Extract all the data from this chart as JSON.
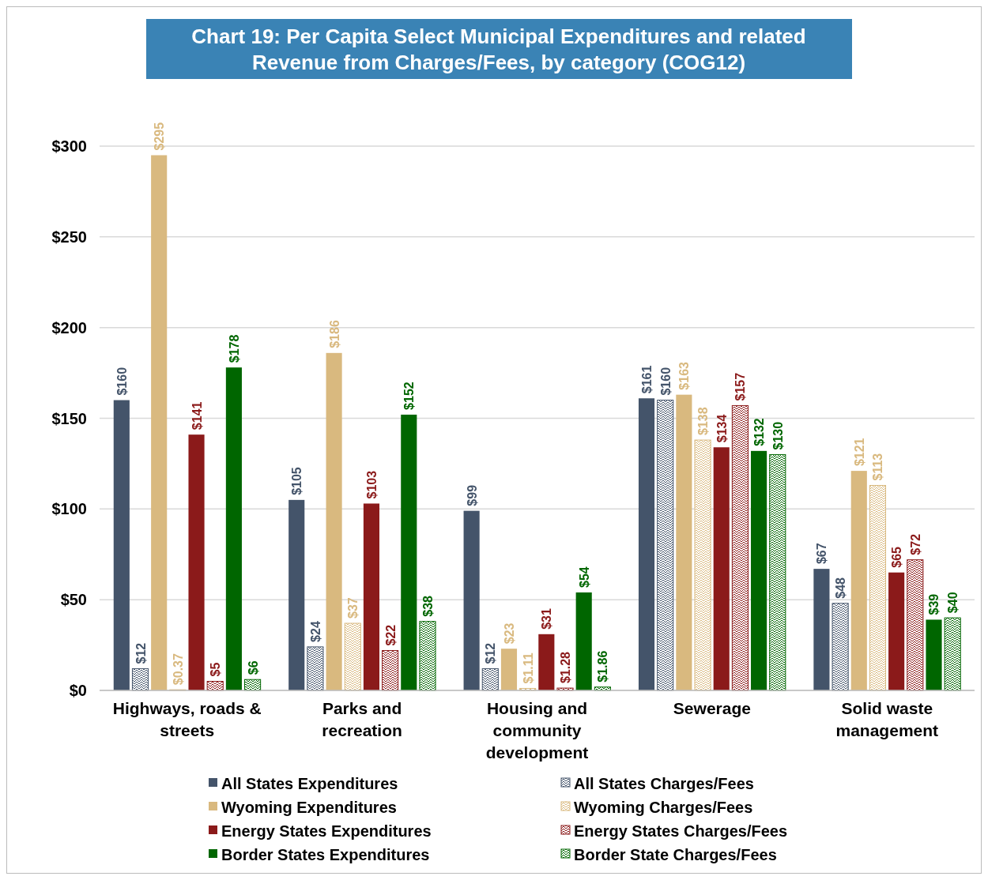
{
  "chart_data": {
    "type": "bar",
    "title": "Chart 19: Per Capita Select Municipal Expenditures and related Revenue from Charges/Fees, by category (COG12)",
    "categories": [
      "Highways, roads & streets",
      "Parks and recreation",
      "Housing and community development",
      "Sewerage",
      "Solid waste management"
    ],
    "series": [
      {
        "name": "All States Expenditures",
        "color": "#44546a",
        "values": [
          160,
          105,
          99,
          161,
          67
        ],
        "value_labels": [
          "$160",
          "$105",
          "$99",
          "$161",
          "$67"
        ]
      },
      {
        "name": "All States Charges/Fees",
        "color": "#44546a",
        "values": [
          12,
          24,
          12,
          160,
          48
        ],
        "value_labels": [
          "$12",
          "$24",
          "$12",
          "$160",
          "$48"
        ]
      },
      {
        "name": "Wyoming Expenditures",
        "color": "#d9b97f",
        "values": [
          295,
          186,
          23,
          163,
          121
        ],
        "value_labels": [
          "$295",
          "$186",
          "$23",
          "$163",
          "$121"
        ]
      },
      {
        "name": "Wyoming Charges/Fees",
        "color": "#d9b97f",
        "values": [
          0.37,
          37,
          1.11,
          138,
          113
        ],
        "value_labels": [
          "$0.37",
          "$37",
          "$1.11",
          "$138",
          "$113"
        ]
      },
      {
        "name": "Energy States Expenditures",
        "color": "#8b1a1a",
        "values": [
          141,
          103,
          31,
          134,
          65
        ],
        "value_labels": [
          "$141",
          "$103",
          "$31",
          "$134",
          "$65"
        ]
      },
      {
        "name": "Energy States Charges/Fees",
        "color": "#8b1a1a",
        "values": [
          5,
          22,
          1.28,
          157,
          72
        ],
        "value_labels": [
          "$5",
          "$22",
          "$1.28",
          "$157",
          "$72"
        ]
      },
      {
        "name": "Border States Expenditures",
        "color": "#006600",
        "values": [
          178,
          152,
          54,
          132,
          39
        ],
        "value_labels": [
          "$178",
          "$152",
          "$54",
          "$132",
          "$39"
        ]
      },
      {
        "name": "Border State Charges/Fees",
        "color": "#006600",
        "values": [
          6,
          38,
          1.86,
          130,
          40
        ],
        "value_labels": [
          "$6",
          "$38",
          "$1.86",
          "$130",
          "$40"
        ]
      }
    ],
    "ylim": [
      0,
      300
    ],
    "yticks": [
      {
        "value": 0,
        "label": "$0"
      },
      {
        "value": 50,
        "label": "$50"
      },
      {
        "value": 100,
        "label": "$100"
      },
      {
        "value": 150,
        "label": "$150"
      },
      {
        "value": 200,
        "label": "$200"
      },
      {
        "value": 250,
        "label": "$250"
      },
      {
        "value": 300,
        "label": "$300"
      }
    ],
    "grid": "y",
    "legend": "bottom"
  }
}
